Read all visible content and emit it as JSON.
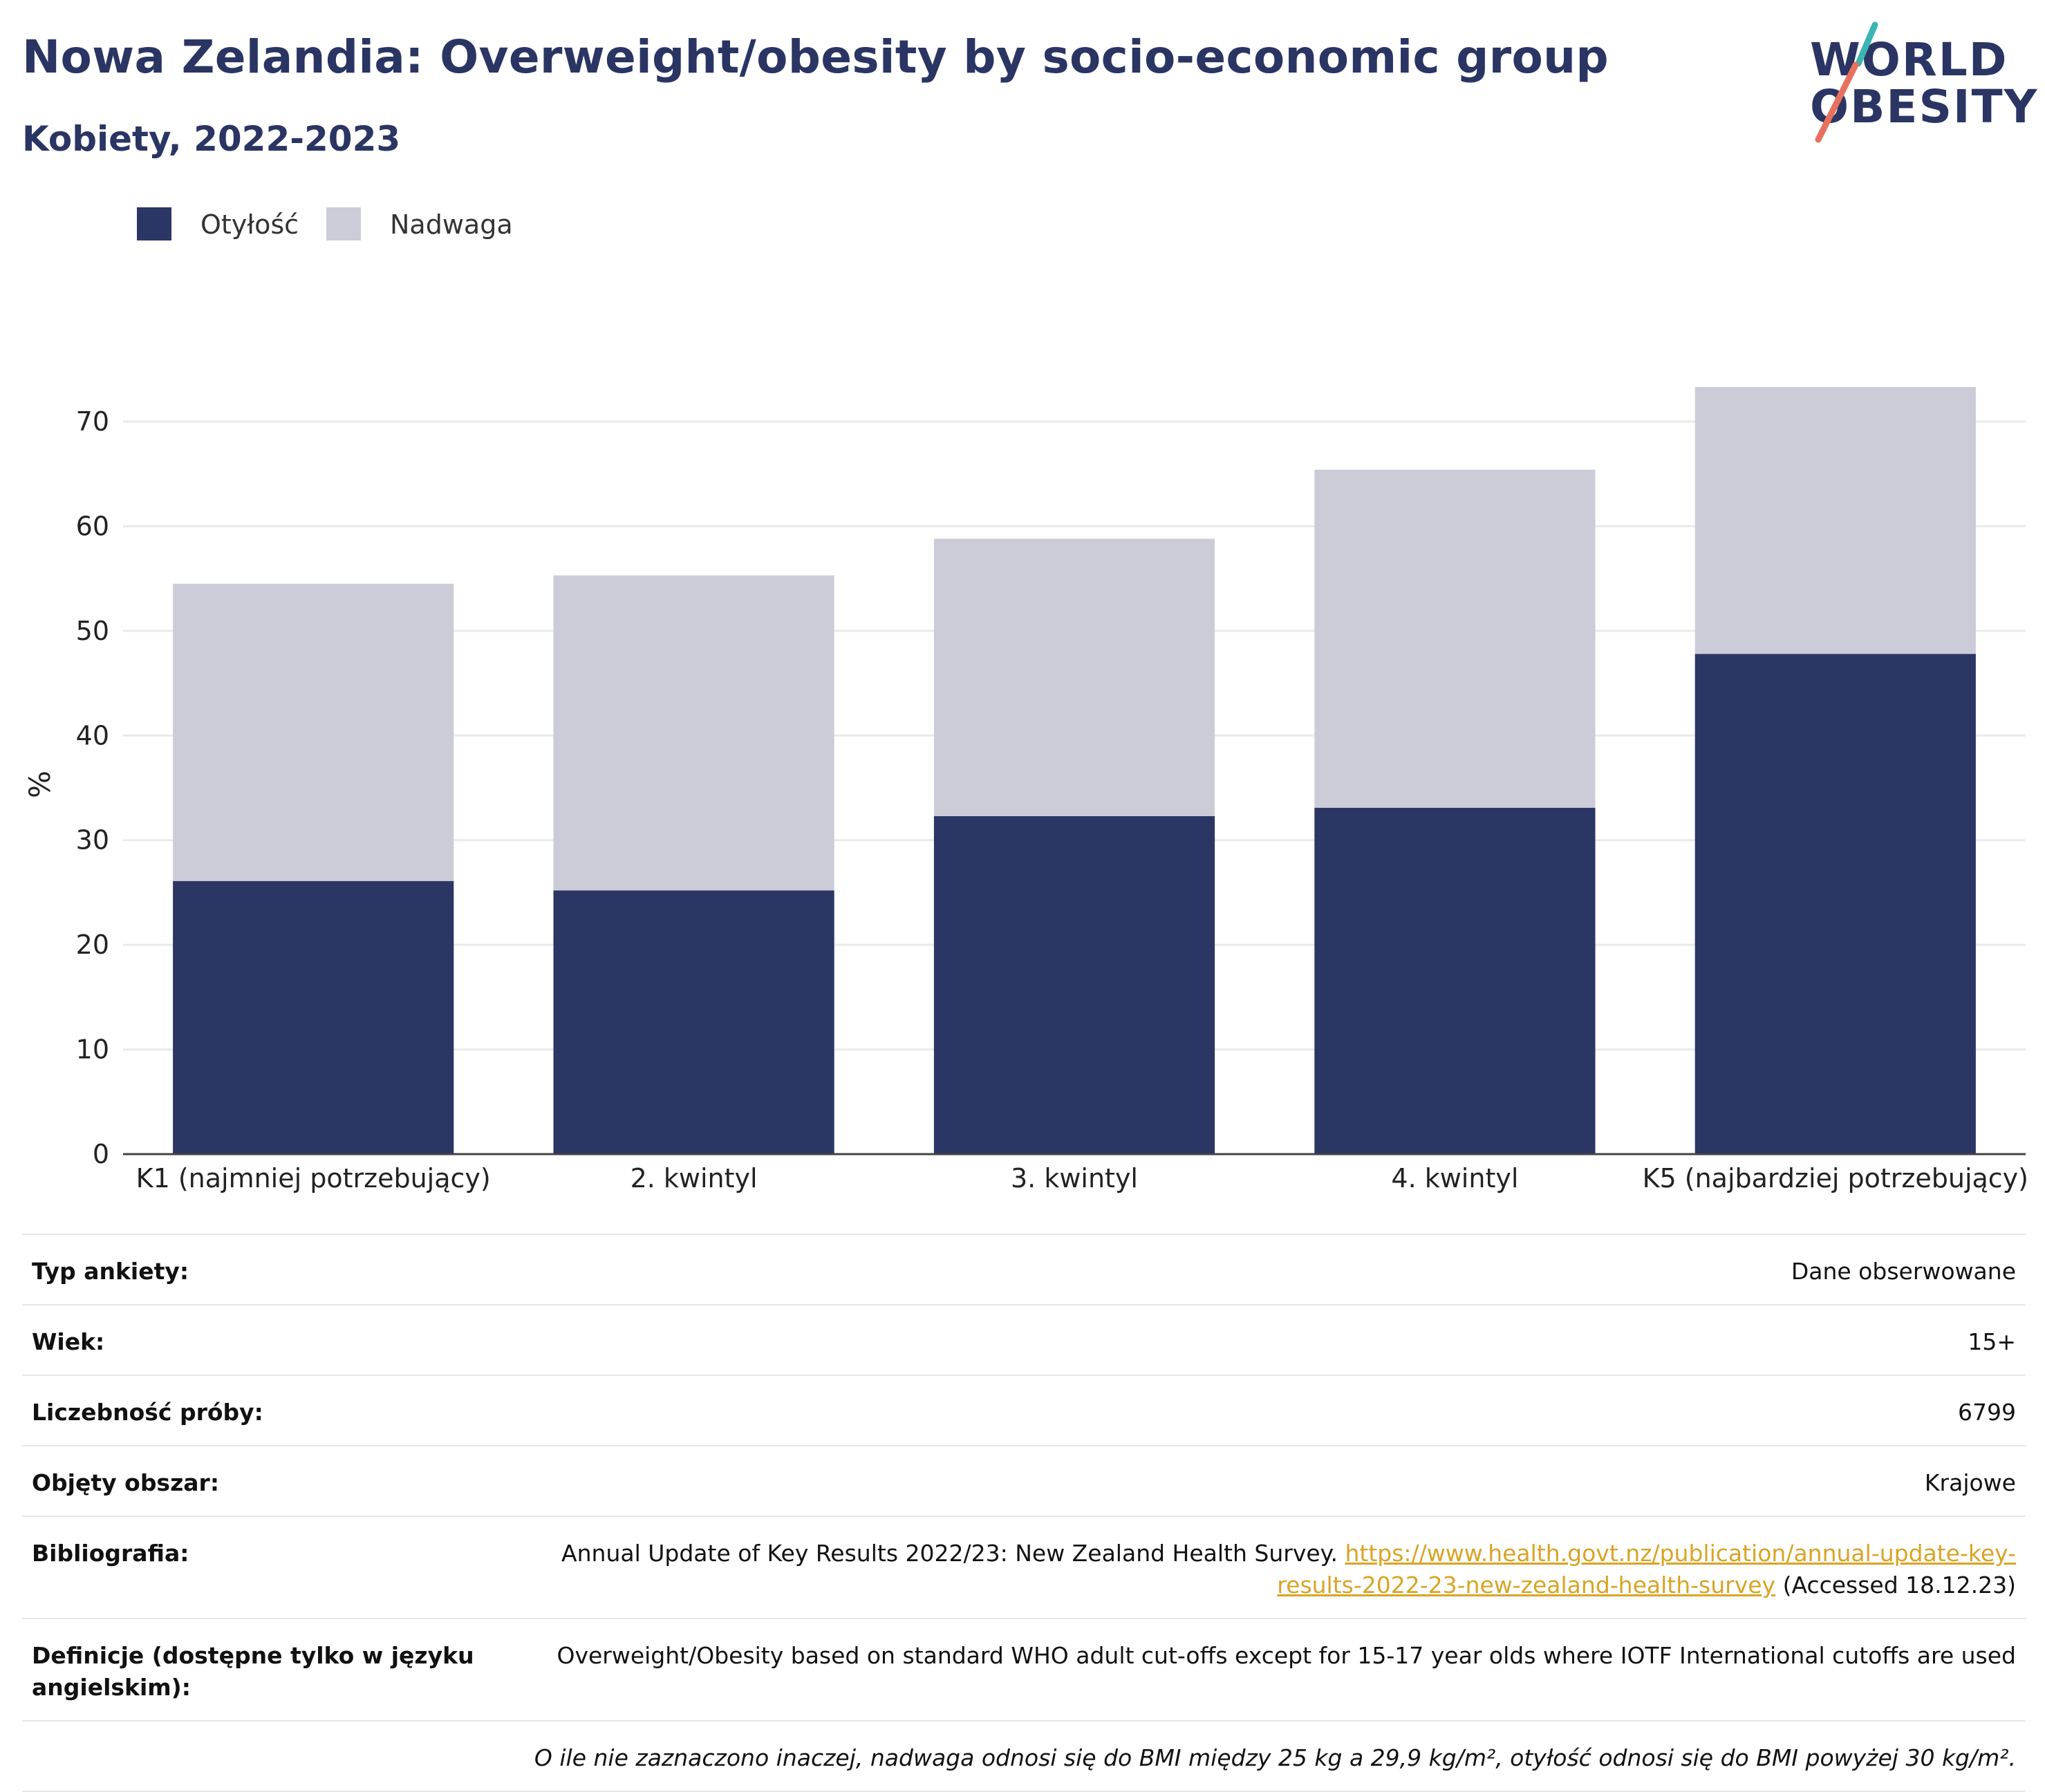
{
  "title": "Nowa Zelandia: Overweight/obesity by socio-economic group",
  "subtitle": "Kobiety, 2022-2023",
  "logo": {
    "line1": "WORLD",
    "line2": "OBESITY"
  },
  "colors": {
    "obesity": "#2b3665",
    "overweight": "#cbccd8",
    "text": "#2a3563",
    "link": "#d9a425",
    "grid": "#eaeaea"
  },
  "chart_data": {
    "type": "bar",
    "stacked": true,
    "categories": [
      "K1 (najmniej potrzebujący)",
      "2. kwintyl",
      "3. kwintyl",
      "4. kwintyl",
      "K5 (najbardziej potrzebujący)"
    ],
    "series": [
      {
        "name": "Otyłość",
        "color": "#2b3665",
        "values": [
          26.1,
          25.2,
          32.3,
          33.1,
          47.8
        ]
      },
      {
        "name": "Nadwaga",
        "color": "#cbccd8",
        "values": [
          28.4,
          30.1,
          26.5,
          32.3,
          25.5
        ]
      }
    ],
    "ylabel": "%",
    "xlabel": "",
    "ylim": [
      0,
      73.3
    ],
    "yticks": [
      0,
      10,
      20,
      30,
      40,
      50,
      60,
      70
    ],
    "grid": true,
    "legend": "top-left"
  },
  "meta": [
    {
      "key": "Typ ankiety:",
      "value": "Dane obserwowane"
    },
    {
      "key": "Wiek:",
      "value": "15+"
    },
    {
      "key": "Liczebność próby:",
      "value": "6799"
    },
    {
      "key": "Objęty obszar:",
      "value": "Krajowe"
    },
    {
      "key": "Bibliografia:",
      "value_pre": "Annual Update of Key Results 2022/23: New Zealand Health Survey.",
      "link": "https://www.health.govt.nz/publication/annual-update-key-results-2022-23-new-zealand-health-survey",
      "value_post": "(Accessed 18.12.23)"
    },
    {
      "key": "Definicje (dostępne tylko w języku angielskim):",
      "value": "Overweight/Obesity based on standard WHO adult cut-offs except for 15-17 year olds where IOTF International cutoffs are used"
    },
    {
      "key": "",
      "value": "O ile nie zaznaczono inaczej, nadwaga odnosi się do BMI między 25 kg a 29,9 kg/m², otyłość odnosi się do BMI powyżej 30 kg/m²."
    }
  ]
}
